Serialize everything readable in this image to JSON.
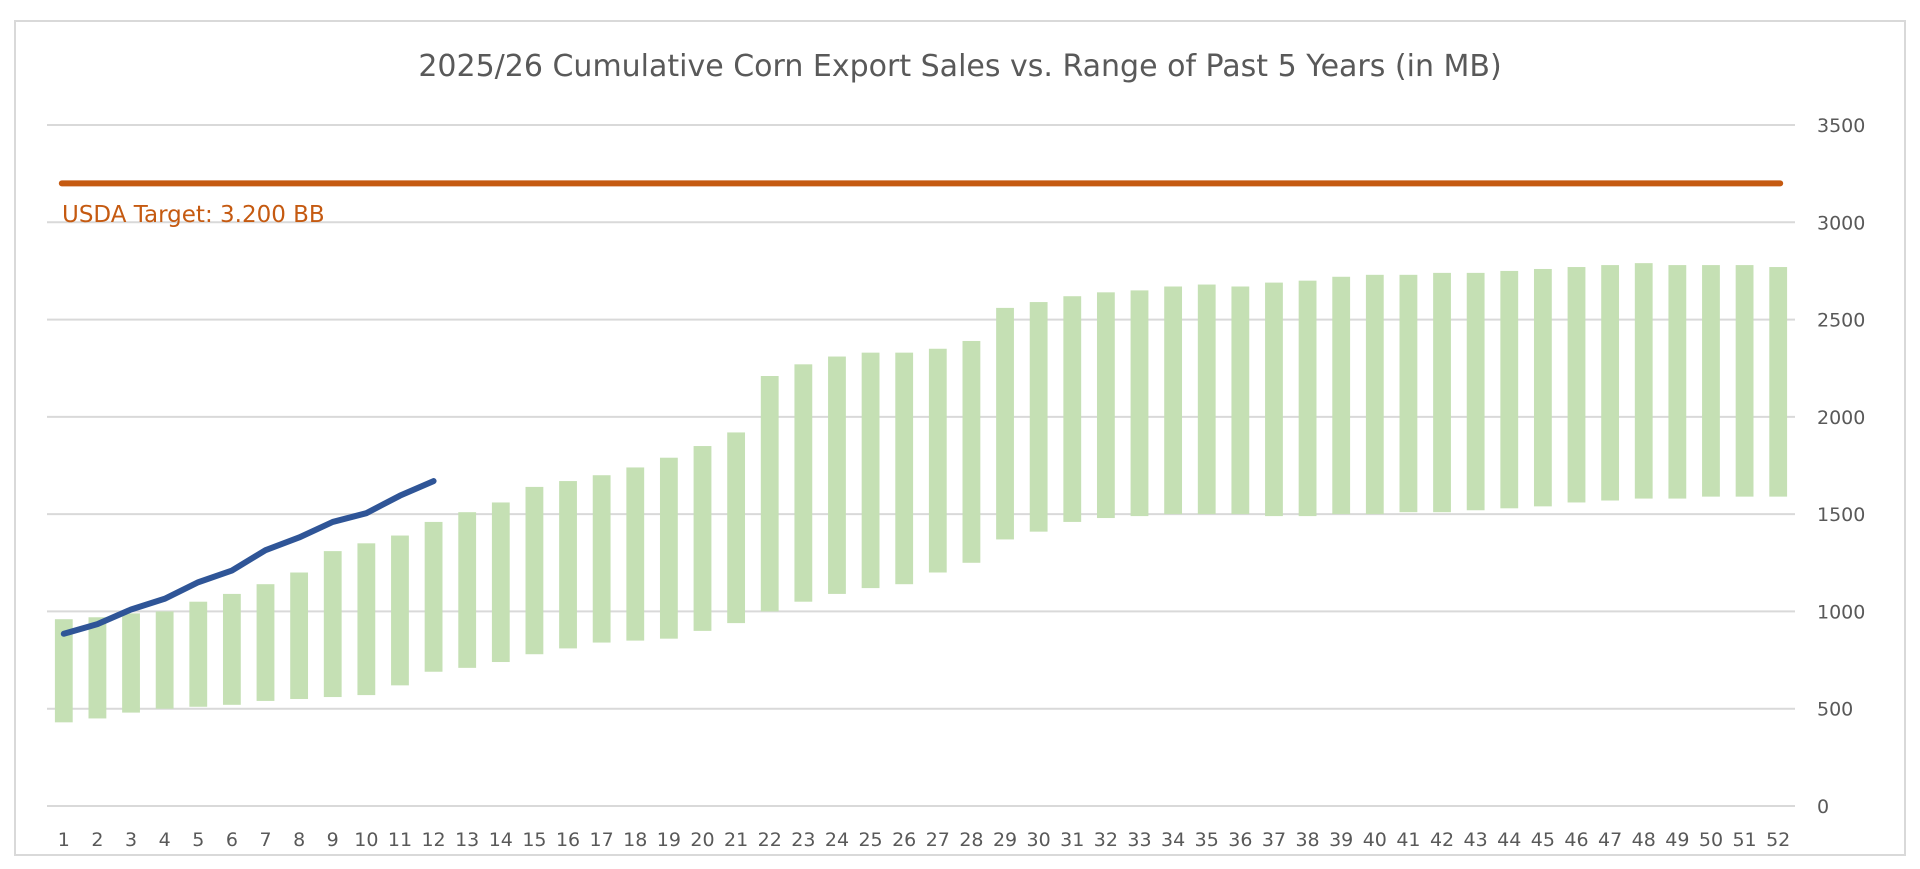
{
  "chart_data": {
    "type": "bar",
    "title": "2025/26 Cumulative Corn Export Sales vs. Range of Past 5 Years (in MB)",
    "xlabel": "",
    "ylabel": "",
    "ylim": [
      0,
      3500
    ],
    "yticks": [
      0,
      500,
      1000,
      1500,
      2000,
      2500,
      3000,
      3500
    ],
    "y_axis_side": "right",
    "grid": true,
    "legend": "none",
    "categories": [
      "1",
      "2",
      "3",
      "4",
      "5",
      "6",
      "7",
      "8",
      "9",
      "10",
      "11",
      "12",
      "13",
      "14",
      "15",
      "16",
      "17",
      "18",
      "19",
      "20",
      "21",
      "22",
      "23",
      "24",
      "25",
      "26",
      "27",
      "28",
      "29",
      "30",
      "31",
      "32",
      "33",
      "34",
      "35",
      "36",
      "37",
      "38",
      "39",
      "40",
      "41",
      "42",
      "43",
      "44",
      "45",
      "46",
      "47",
      "48",
      "49",
      "50",
      "51",
      "52"
    ],
    "series": [
      {
        "name": "Past 5 Years Range",
        "kind": "floating-bar",
        "color": "#c5e0b4",
        "low": [
          430,
          450,
          480,
          500,
          510,
          520,
          540,
          550,
          560,
          570,
          620,
          690,
          710,
          740,
          780,
          810,
          840,
          850,
          860,
          900,
          940,
          1000,
          1050,
          1090,
          1120,
          1140,
          1200,
          1250,
          1370,
          1410,
          1460,
          1480,
          1490,
          1500,
          1500,
          1500,
          1490,
          1490,
          1500,
          1500,
          1510,
          1510,
          1520,
          1530,
          1540,
          1560,
          1570,
          1580,
          1580,
          1590,
          1590,
          1590
        ],
        "high": [
          960,
          970,
          990,
          1000,
          1050,
          1090,
          1140,
          1200,
          1310,
          1350,
          1390,
          1460,
          1510,
          1560,
          1640,
          1670,
          1700,
          1740,
          1790,
          1850,
          1920,
          2210,
          2270,
          2310,
          2330,
          2330,
          2350,
          2390,
          2560,
          2590,
          2620,
          2640,
          2650,
          2670,
          2680,
          2670,
          2690,
          2700,
          2720,
          2730,
          2730,
          2740,
          2740,
          2750,
          2760,
          2770,
          2780,
          2790,
          2780,
          2780,
          2780,
          2770
        ]
      },
      {
        "name": "2025/26 Cumulative Sales",
        "kind": "line",
        "color": "#2f5597",
        "values": [
          885,
          935,
          1010,
          1065,
          1150,
          1210,
          1315,
          1380,
          1460,
          1505,
          1595,
          1670
        ]
      },
      {
        "name": "USDA Target",
        "kind": "hline",
        "color": "#c55a11",
        "value": 3200
      }
    ],
    "annotations": [
      {
        "text": "USDA Target: 3.200 BB",
        "color": "#c55a11"
      }
    ]
  }
}
